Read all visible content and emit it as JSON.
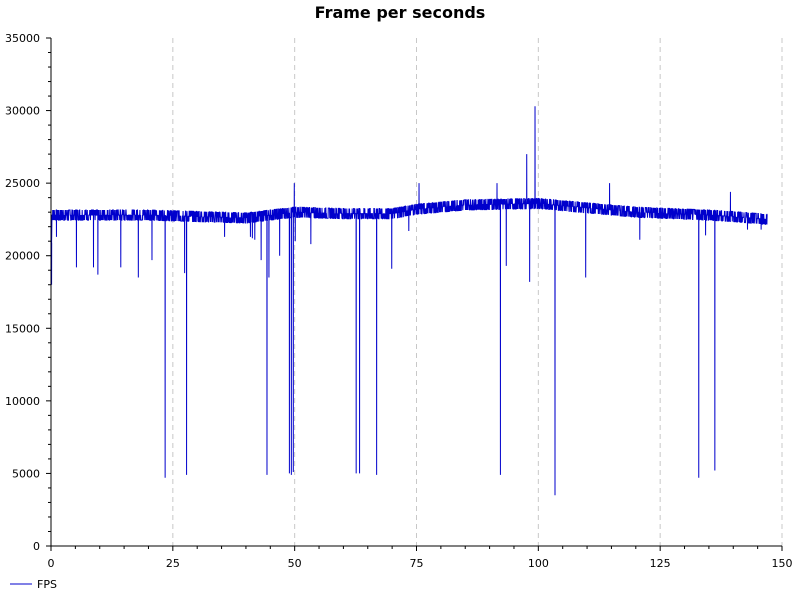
{
  "chart_data": {
    "type": "line",
    "title": "Frame per seconds",
    "xlabel": "",
    "ylabel": "",
    "xlim": [
      0,
      150
    ],
    "ylim": [
      0,
      35000
    ],
    "xticks": [
      0,
      25,
      50,
      75,
      100,
      125,
      150
    ],
    "yticks": [
      0,
      5000,
      10000,
      15000,
      20000,
      25000,
      30000,
      35000
    ],
    "grid": {
      "x": true,
      "y": false,
      "style": "dashed"
    },
    "legend": {
      "position": "bottom-left",
      "entries": [
        "FPS"
      ]
    },
    "colors": {
      "series": "#0000cc",
      "grid": "#c8c8c8",
      "axis": "#000000"
    },
    "series": [
      {
        "name": "FPS",
        "baseline": [
          [
            0,
            19000
          ],
          [
            0.2,
            22800
          ],
          [
            20,
            22800
          ],
          [
            40,
            22600
          ],
          [
            50,
            23000
          ],
          [
            60,
            22900
          ],
          [
            70,
            22900
          ],
          [
            75,
            23200
          ],
          [
            85,
            23500
          ],
          [
            100,
            23600
          ],
          [
            110,
            23300
          ],
          [
            120,
            23000
          ],
          [
            135,
            22800
          ],
          [
            140,
            22700
          ],
          [
            147,
            22500
          ]
        ],
        "spikes_up": [
          [
            49.9,
            25000
          ],
          [
            75.5,
            25000
          ],
          [
            91.5,
            25000
          ],
          [
            97.6,
            27000
          ],
          [
            99.3,
            30300
          ],
          [
            114.6,
            25000
          ],
          [
            139.4,
            24400
          ]
        ],
        "spikes_down": [
          [
            0.1,
            18000
          ],
          [
            1.1,
            21300
          ],
          [
            5.2,
            19200
          ],
          [
            8.7,
            19200
          ],
          [
            9.6,
            18700
          ],
          [
            14.3,
            19200
          ],
          [
            17.9,
            18500
          ],
          [
            20.7,
            19700
          ],
          [
            23.4,
            4700
          ],
          [
            27.4,
            18800
          ],
          [
            27.8,
            4900
          ],
          [
            35.6,
            21300
          ],
          [
            40.9,
            21300
          ],
          [
            41.3,
            21200
          ],
          [
            41.8,
            21100
          ],
          [
            43.1,
            19700
          ],
          [
            44.3,
            19100
          ],
          [
            44.3,
            4900
          ],
          [
            44.7,
            18500
          ],
          [
            46.9,
            20000
          ],
          [
            48.9,
            5000
          ],
          [
            49.3,
            4900
          ],
          [
            49.7,
            5100
          ],
          [
            50.1,
            21000
          ],
          [
            53.3,
            20800
          ],
          [
            62.6,
            5000
          ],
          [
            63.3,
            5000
          ],
          [
            66.8,
            4900
          ],
          [
            69.9,
            19100
          ],
          [
            73.4,
            21700
          ],
          [
            92.2,
            4900
          ],
          [
            93.4,
            19300
          ],
          [
            98.2,
            18200
          ],
          [
            103.4,
            3500
          ],
          [
            109.7,
            18500
          ],
          [
            120.8,
            21100
          ],
          [
            132.9,
            4700
          ],
          [
            134.3,
            21400
          ],
          [
            136.2,
            5200
          ],
          [
            142.9,
            21800
          ],
          [
            145.7,
            21800
          ]
        ]
      }
    ]
  }
}
